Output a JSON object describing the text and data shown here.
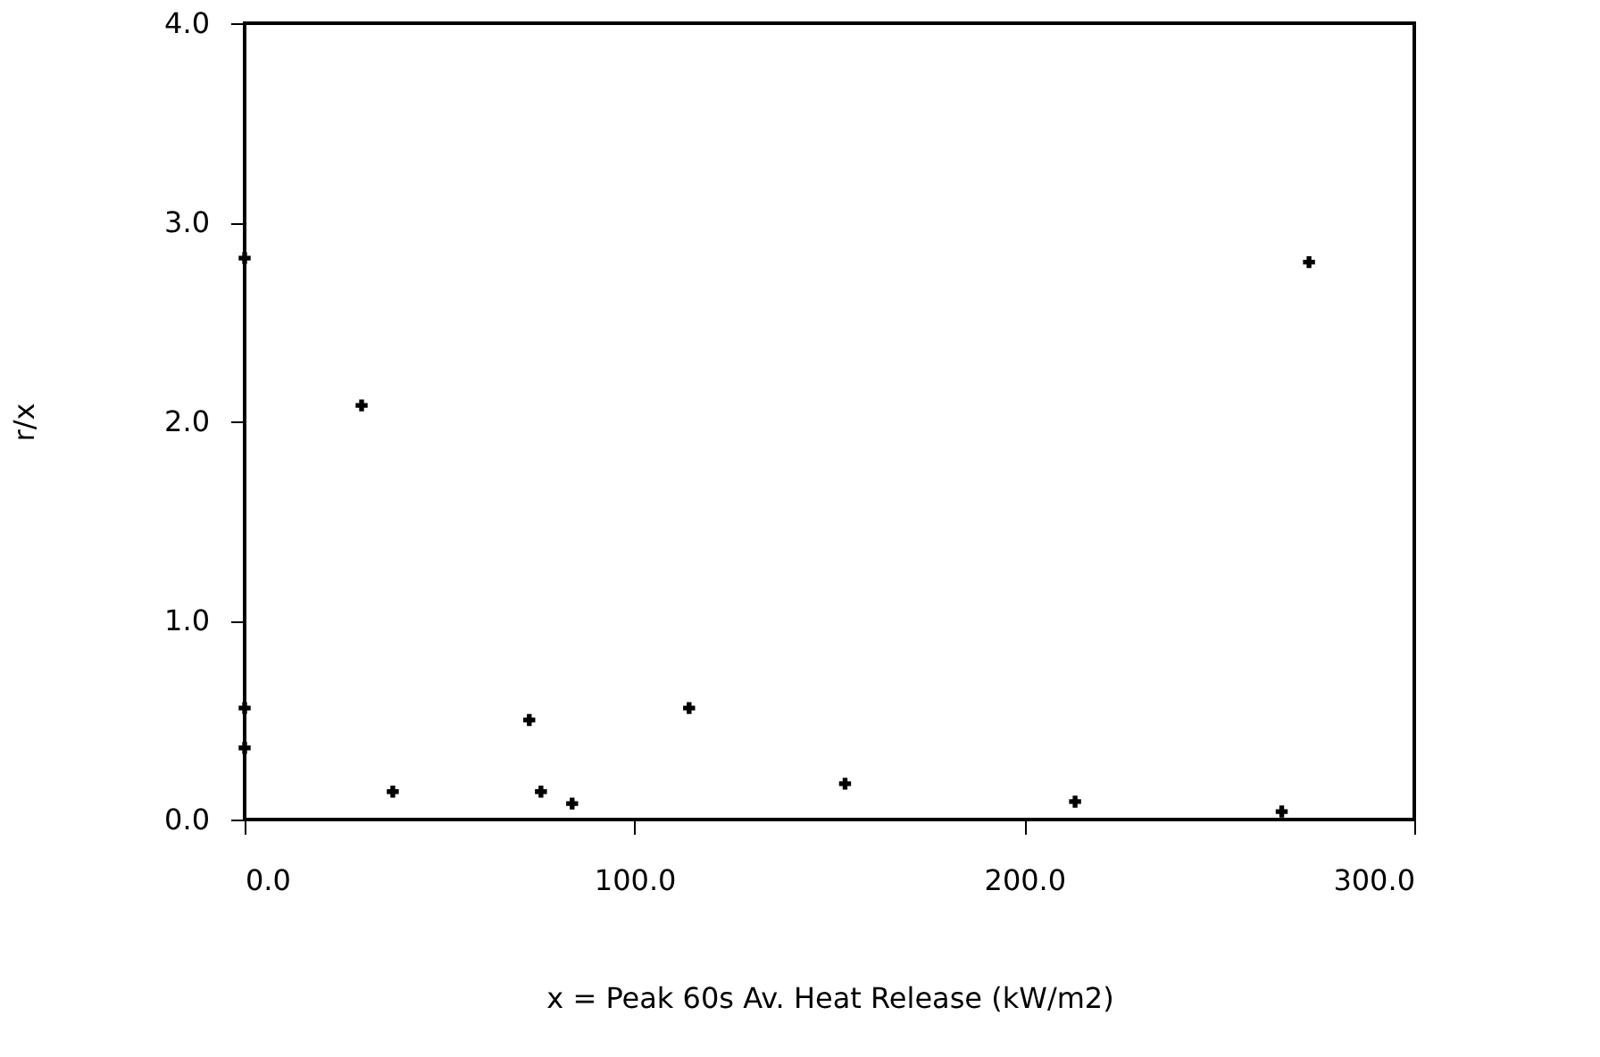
{
  "chart_data": {
    "type": "scatter",
    "xlabel": "x = Peak 60s Av. Heat Release (kW/m2)",
    "ylabel": "r/x",
    "x": [
      0,
      0,
      0,
      30,
      38,
      73,
      76,
      84,
      114,
      154,
      213,
      266,
      273
    ],
    "series": [
      {
        "color": "#000000",
        "values": [
          2.82,
          0.56,
          0.36,
          2.08,
          0.14,
          0.5,
          0.14,
          0.08,
          0.56,
          0.18,
          0.09,
          0.04,
          2.8
        ]
      }
    ],
    "xlim": [
      0,
      300
    ],
    "ylim": [
      0,
      4
    ],
    "xticks": [
      {
        "value": 0,
        "label": "0.0"
      },
      {
        "value": 100,
        "label": "100.0"
      },
      {
        "value": 200,
        "label": "200.0"
      },
      {
        "value": 300,
        "label": "300.0"
      }
    ],
    "yticks": [
      {
        "value": 0,
        "label": "0.0"
      },
      {
        "value": 1,
        "label": "1.0"
      },
      {
        "value": 2,
        "label": "2.0"
      },
      {
        "value": 3,
        "label": "3.0"
      },
      {
        "value": 4,
        "label": "4.0"
      }
    ],
    "grid": false,
    "marker": "cross"
  }
}
